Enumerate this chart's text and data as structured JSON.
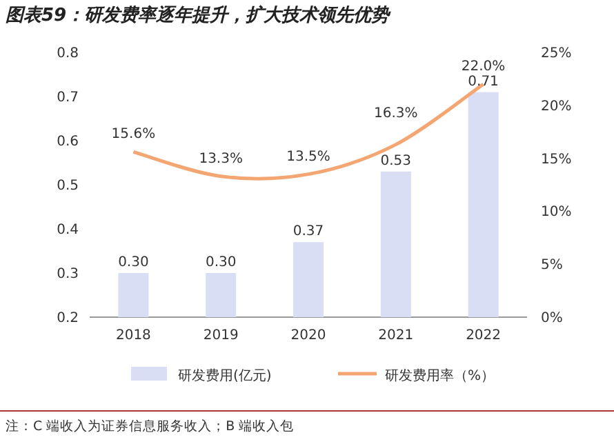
{
  "chart_data": {
    "type": "bar",
    "title": "图表59：研发费率逐年提升，扩大技术领先优势",
    "categories": [
      "2018",
      "2019",
      "2020",
      "2021",
      "2022"
    ],
    "series": [
      {
        "name": "研发费用(亿元)",
        "type": "bar",
        "color": "#d9def5",
        "values": [
          0.3,
          0.3,
          0.37,
          0.53,
          0.71
        ],
        "value_labels": [
          "0.30",
          "0.30",
          "0.37",
          "0.53",
          "0.71"
        ]
      },
      {
        "name": "研发费用率（%）",
        "type": "line",
        "axis": "y2",
        "color": "#f4a672",
        "values": [
          15.6,
          13.3,
          13.5,
          16.3,
          22.0
        ],
        "value_labels": [
          "15.6%",
          "13.3%",
          "13.5%",
          "16.3%",
          "22.0%"
        ]
      }
    ],
    "ylim": [
      0.2,
      0.8
    ],
    "yticks": [
      0.2,
      0.3,
      0.4,
      0.5,
      0.6,
      0.7,
      0.8
    ],
    "y2lim": [
      0,
      25
    ],
    "y2ticks": [
      {
        "value": 0,
        "label": "0%"
      },
      {
        "value": 5,
        "label": "5%"
      },
      {
        "value": 10,
        "label": "10%"
      },
      {
        "value": 15,
        "label": "15%"
      },
      {
        "value": 20,
        "label": "20%"
      },
      {
        "value": 25,
        "label": "25%"
      }
    ],
    "legend": "bottom",
    "marker": "none",
    "line_style": "solid",
    "annotations": [
      "注：C 端收入为证券信息服务收入；B 端收入包"
    ]
  }
}
